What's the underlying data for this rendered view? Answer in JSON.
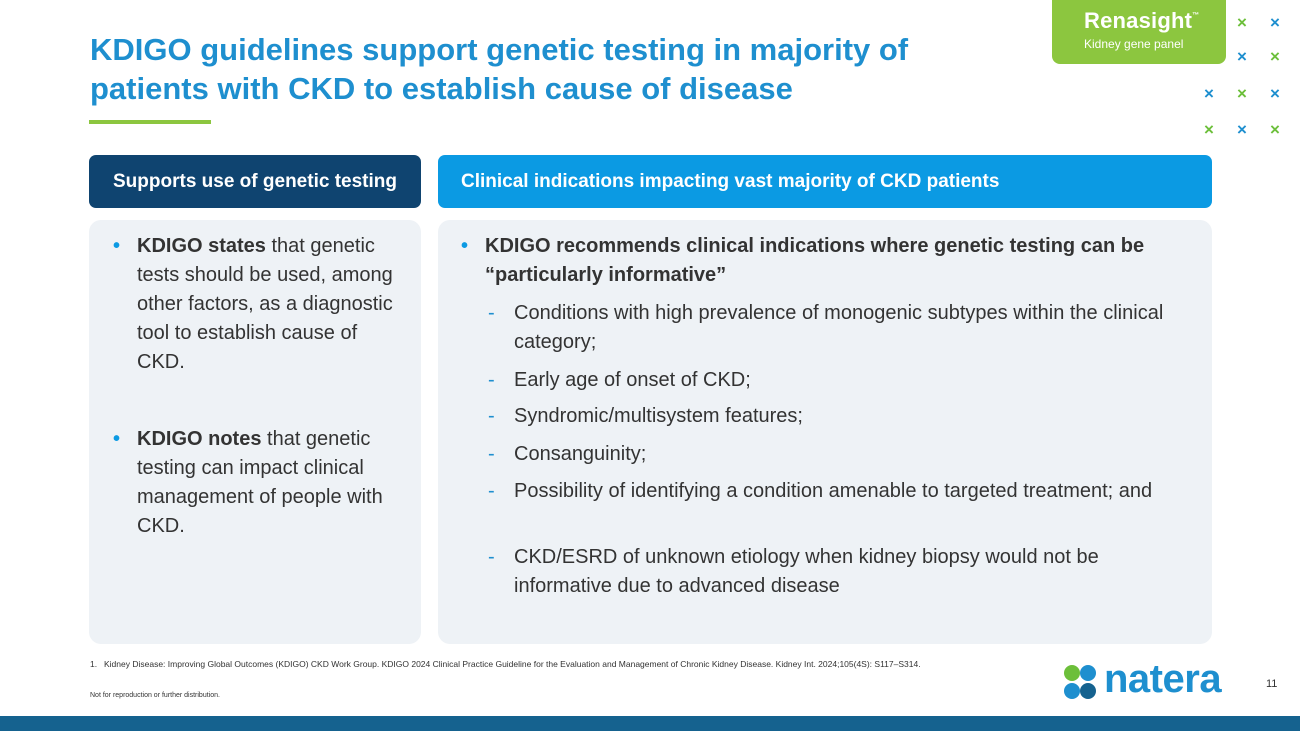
{
  "title": "KDIGO guidelines support genetic testing in majority of patients with CKD to establish cause of disease",
  "brand": {
    "name": "Renasight",
    "tm": "™",
    "subtitle": "Kidney gene panel"
  },
  "left_panel": {
    "header": "Supports use of genetic testing",
    "bullets": [
      {
        "bold": "KDIGO states",
        "text": " that genetic tests should be used, among other factors, as a diagnostic tool to establish cause of CKD."
      },
      {
        "bold": "KDIGO notes",
        "text": " that genetic testing can impact clinical management of people with CKD."
      }
    ]
  },
  "right_panel": {
    "header": "Clinical indications impacting vast majority of CKD patients",
    "lead": "KDIGO recommends clinical indications where genetic testing can be “particularly informative”",
    "items": [
      "Conditions with high prevalence of monogenic subtypes within the clinical category;",
      "Early age of onset of CKD;",
      "Syndromic/multisystem features;",
      "Consanguinity;",
      "Possibility of identifying a condition amenable to targeted treatment; and",
      "CKD/ESRD of unknown etiology when kidney biopsy would not be informative due to advanced disease"
    ]
  },
  "footnote": {
    "number": "1.",
    "text": "Kidney Disease: Improving Global Outcomes (KDIGO) CKD Work Group. KDIGO 2024 Clinical Practice Guideline for the Evaluation and Management of Chronic Kidney Disease. Kidney Int. 2024;105(4S): S117–S314."
  },
  "disclaimer": "Not for reproduction or further distribution.",
  "logo": {
    "word": "natera",
    "icon": "natera-clover-icon"
  },
  "page_number": "11",
  "decor": {
    "mark": "×",
    "icon": "x-mark-icon"
  },
  "colors": {
    "title": "#1e8fcf",
    "accent_green": "#8cc63f",
    "dark_header": "#0f4470",
    "blue_header": "#0b9ae3",
    "panel_bg": "#eef2f6",
    "bottom_bar": "#15628f"
  }
}
